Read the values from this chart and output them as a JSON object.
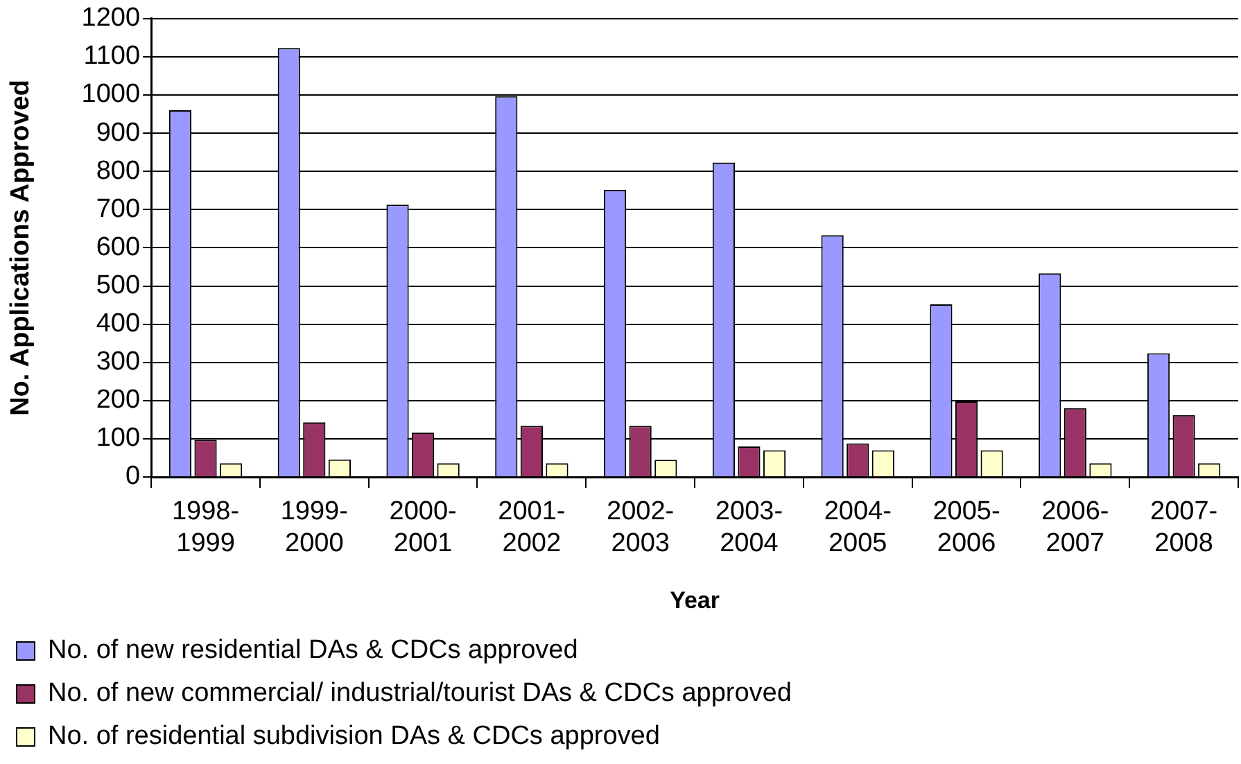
{
  "chart_data": {
    "type": "bar",
    "xlabel": "Year",
    "ylabel": "No. Applications Approved",
    "categories": [
      "1998-1999",
      "1999-2000",
      "2000-2001",
      "2001-2002",
      "2002-2003",
      "2003-2004",
      "2004-2005",
      "2005-2006",
      "2006-2007",
      "2007-2008"
    ],
    "series": [
      {
        "name": "No. of new residential DAs & CDCs approved",
        "color": "#9999ff",
        "values": [
          960,
          1123,
          713,
          997,
          752,
          823,
          633,
          452,
          533,
          324
        ]
      },
      {
        "name": "No. of new commercial/ industrial/tourist DAs & CDCs approved",
        "color": "#993366",
        "values": [
          97,
          143,
          116,
          134,
          134,
          80,
          88,
          198,
          180,
          162
        ]
      },
      {
        "name": "No. of residential subdivision DAs & CDCs approved",
        "color": "#ffffcc",
        "values": [
          36,
          46,
          36,
          36,
          45,
          70,
          70,
          70,
          36,
          36
        ]
      }
    ],
    "ylim": [
      0,
      1200
    ],
    "yticks": [
      0,
      100,
      200,
      300,
      400,
      500,
      600,
      700,
      800,
      900,
      1000,
      1100,
      1200
    ],
    "grid": "y",
    "legend": "bottom"
  }
}
